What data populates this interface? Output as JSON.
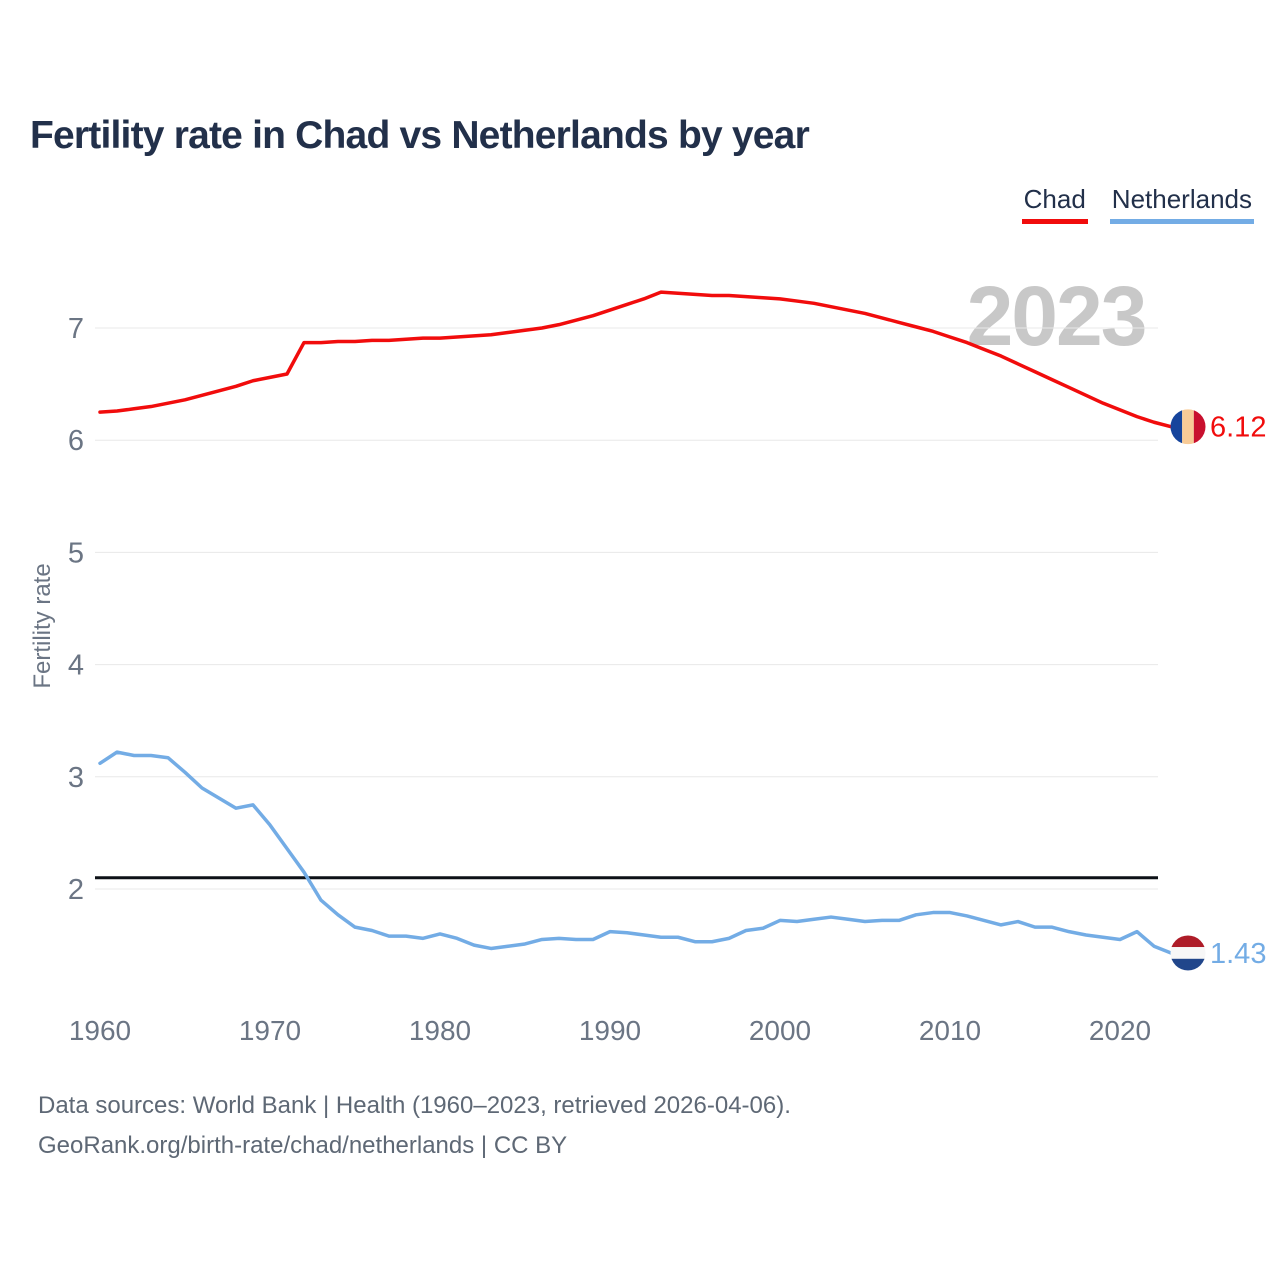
{
  "header": {
    "title": "Fertility rate in Chad vs Netherlands by year"
  },
  "legend": {
    "items": [
      {
        "label": "Chad",
        "color": "#f10c0c"
      },
      {
        "label": "Netherlands",
        "color": "#73ace5"
      }
    ]
  },
  "watermark": "2023",
  "footer": {
    "line1": "Data sources: World Bank | Health (1960–2023, retrieved 2026-04-06).",
    "line2": "GeoRank.org/birth-rate/chad/netherlands | CC BY"
  },
  "chart_data": {
    "type": "line",
    "title": "Fertility rate in Chad vs Netherlands by year",
    "xlabel": "",
    "ylabel": "Fertility rate",
    "xlim": [
      1960,
      2023
    ],
    "ylim": [
      1.3,
      7.6
    ],
    "x_ticks": [
      1960,
      1970,
      1980,
      1990,
      2000,
      2010,
      2020
    ],
    "y_ticks": [
      2,
      3,
      4,
      5,
      6,
      7
    ],
    "grid": "horizontal",
    "legend_position": "top-right",
    "reference_line": {
      "value": 2.1,
      "color": "#0d1117"
    },
    "x": [
      1960,
      1961,
      1962,
      1963,
      1964,
      1965,
      1966,
      1967,
      1968,
      1969,
      1970,
      1971,
      1972,
      1973,
      1974,
      1975,
      1976,
      1977,
      1978,
      1979,
      1980,
      1981,
      1982,
      1983,
      1984,
      1985,
      1986,
      1987,
      1988,
      1989,
      1990,
      1991,
      1992,
      1993,
      1994,
      1995,
      1996,
      1997,
      1998,
      1999,
      2000,
      2001,
      2002,
      2003,
      2004,
      2005,
      2006,
      2007,
      2008,
      2009,
      2010,
      2011,
      2012,
      2013,
      2014,
      2015,
      2016,
      2017,
      2018,
      2019,
      2020,
      2021,
      2022,
      2023
    ],
    "series": [
      {
        "name": "Chad",
        "color": "#f10c0c",
        "end_label": "6.12",
        "flag": {
          "orientation": "vertical",
          "colors": [
            "#16449c",
            "#f8cb97",
            "#c8102e"
          ]
        },
        "values": [
          6.25,
          6.26,
          6.28,
          6.3,
          6.33,
          6.36,
          6.4,
          6.44,
          6.48,
          6.53,
          6.56,
          6.59,
          6.87,
          6.87,
          6.88,
          6.88,
          6.89,
          6.89,
          6.9,
          6.91,
          6.91,
          6.92,
          6.93,
          6.94,
          6.96,
          6.98,
          7.0,
          7.03,
          7.07,
          7.11,
          7.16,
          7.21,
          7.26,
          7.32,
          7.31,
          7.3,
          7.29,
          7.29,
          7.28,
          7.27,
          7.26,
          7.24,
          7.22,
          7.19,
          7.16,
          7.13,
          7.09,
          7.05,
          7.01,
          6.97,
          6.92,
          6.87,
          6.81,
          6.75,
          6.68,
          6.61,
          6.54,
          6.47,
          6.4,
          6.33,
          6.27,
          6.21,
          6.16,
          6.12
        ]
      },
      {
        "name": "Netherlands",
        "color": "#73ace5",
        "end_label": "1.43",
        "flag": {
          "orientation": "horizontal",
          "colors": [
            "#ae1c28",
            "#f7f7f7",
            "#21468b"
          ]
        },
        "values": [
          3.12,
          3.22,
          3.19,
          3.19,
          3.17,
          3.04,
          2.9,
          2.81,
          2.72,
          2.75,
          2.57,
          2.36,
          2.15,
          1.9,
          1.77,
          1.66,
          1.63,
          1.58,
          1.58,
          1.56,
          1.6,
          1.56,
          1.5,
          1.47,
          1.49,
          1.51,
          1.55,
          1.56,
          1.55,
          1.55,
          1.62,
          1.61,
          1.59,
          1.57,
          1.57,
          1.53,
          1.53,
          1.56,
          1.63,
          1.65,
          1.72,
          1.71,
          1.73,
          1.75,
          1.73,
          1.71,
          1.72,
          1.72,
          1.77,
          1.79,
          1.79,
          1.76,
          1.72,
          1.68,
          1.71,
          1.66,
          1.66,
          1.62,
          1.59,
          1.57,
          1.55,
          1.62,
          1.49,
          1.43
        ]
      }
    ]
  }
}
